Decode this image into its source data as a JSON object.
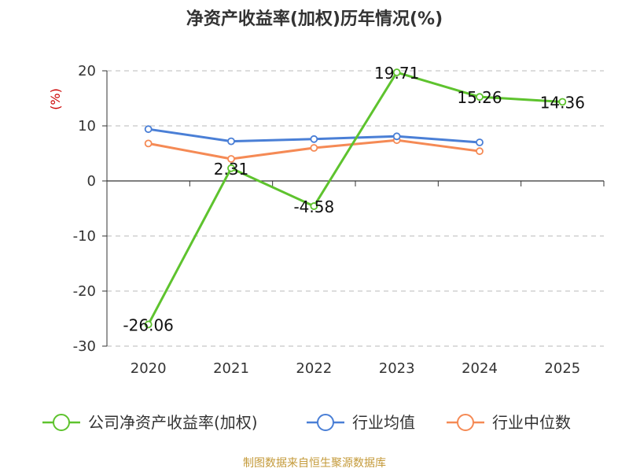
{
  "title": "净资产收益率(加权)历年情况(%)",
  "source_note": "制图数据来自恒生聚源数据库",
  "chart_data": {
    "type": "line",
    "title": "净资产收益率(加权)历年情况(%)",
    "ylabel": "(%)",
    "xlabel": "",
    "categories": [
      "2020",
      "2021",
      "2022",
      "2023",
      "2024",
      "2025"
    ],
    "ylim": [
      -30,
      20
    ],
    "yticks": [
      "20",
      "10",
      "0",
      "-10",
      "-20",
      "-30"
    ],
    "grid": true,
    "legend": "bottom",
    "series": [
      {
        "name": "公司净资产收益率(加权)",
        "color": "#5ec32e",
        "values": [
          -26.06,
          2.31,
          -4.58,
          19.71,
          15.26,
          14.36
        ],
        "labels": [
          "-26.06",
          "2.31",
          "-4.58",
          "19.71",
          "15.26",
          "14.36"
        ]
      },
      {
        "name": "行业均值",
        "color": "#4a7fd6",
        "values": [
          9.4,
          7.2,
          7.6,
          8.1,
          7.0,
          null
        ]
      },
      {
        "name": "行业中位数",
        "color": "#f58a55",
        "values": [
          6.8,
          4.0,
          6.0,
          7.4,
          5.4,
          null
        ]
      }
    ]
  }
}
